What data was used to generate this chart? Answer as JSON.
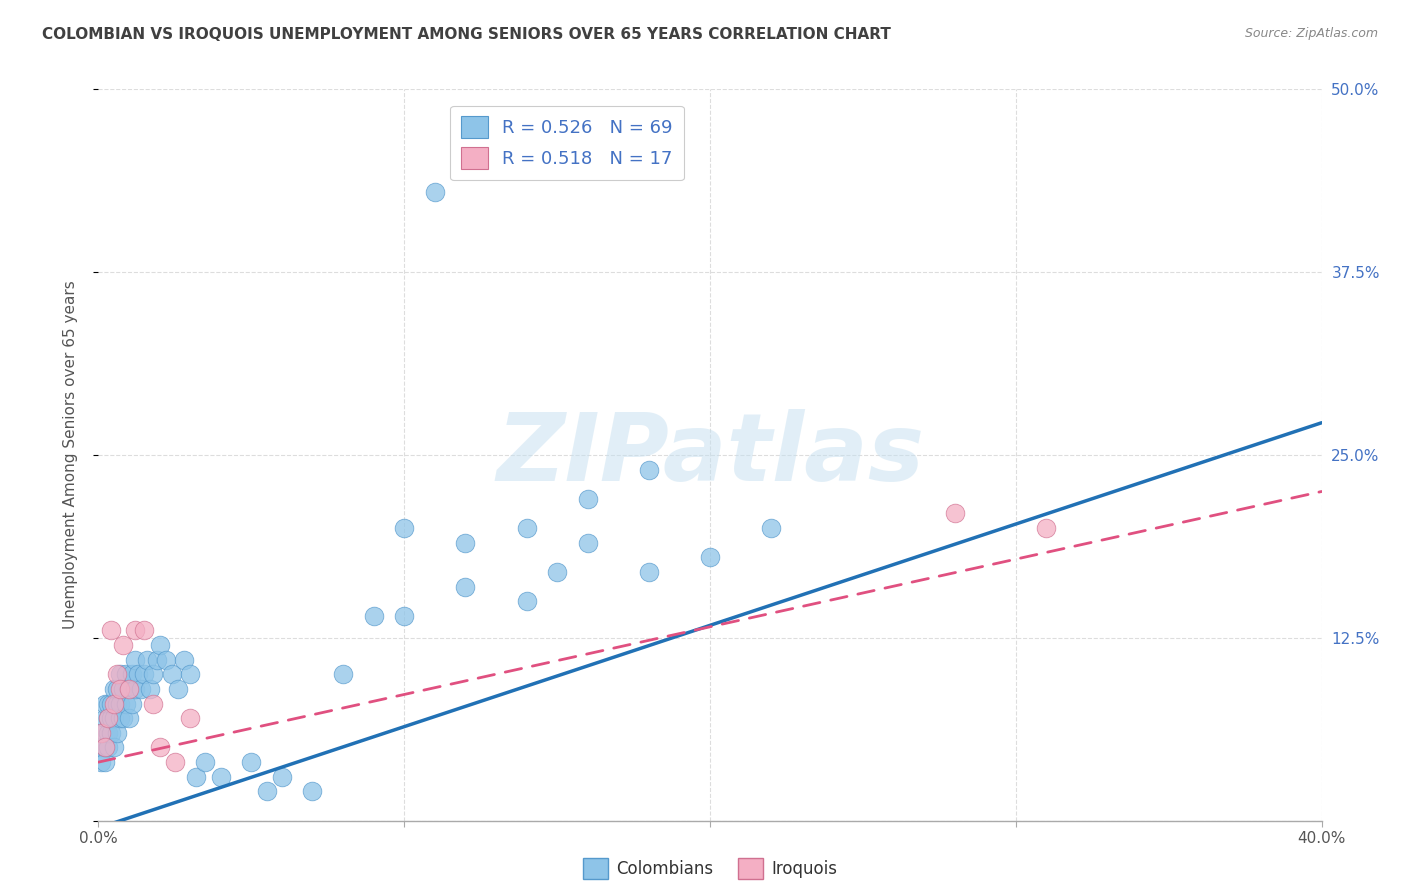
{
  "title": "COLOMBIAN VS IROQUOIS UNEMPLOYMENT AMONG SENIORS OVER 65 YEARS CORRELATION CHART",
  "source": "Source: ZipAtlas.com",
  "ylabel": "Unemployment Among Seniors over 65 years",
  "xlim": [
    0.0,
    0.4
  ],
  "ylim": [
    0.0,
    0.5
  ],
  "xticks": [
    0.0,
    0.1,
    0.2,
    0.3,
    0.4
  ],
  "yticks": [
    0.0,
    0.125,
    0.25,
    0.375,
    0.5
  ],
  "right_ytick_labels": [
    "",
    "12.5%",
    "25.0%",
    "37.5%",
    "50.0%"
  ],
  "xtick_labels": [
    "0.0%",
    "",
    "",
    "",
    "40.0%"
  ],
  "color_blue": "#8ec4e8",
  "color_pink": "#f4afc4",
  "color_blue_line": "#2171b5",
  "color_pink_line": "#e05080",
  "color_title": "#404040",
  "color_source": "#888888",
  "watermark": "ZIPatlas",
  "blue_line_x": [
    0.0,
    0.4
  ],
  "blue_line_y": [
    -0.005,
    0.272
  ],
  "pink_line_x": [
    0.0,
    0.4
  ],
  "pink_line_y": [
    0.04,
    0.225
  ],
  "grid_color": "#dddddd",
  "blue_x": [
    0.001,
    0.001,
    0.001,
    0.002,
    0.002,
    0.002,
    0.002,
    0.003,
    0.003,
    0.003,
    0.003,
    0.004,
    0.004,
    0.004,
    0.005,
    0.005,
    0.005,
    0.006,
    0.006,
    0.006,
    0.007,
    0.007,
    0.007,
    0.008,
    0.008,
    0.009,
    0.009,
    0.01,
    0.01,
    0.011,
    0.011,
    0.012,
    0.012,
    0.013,
    0.014,
    0.015,
    0.016,
    0.017,
    0.018,
    0.019,
    0.02,
    0.022,
    0.024,
    0.026,
    0.028,
    0.03,
    0.032,
    0.035,
    0.04,
    0.05,
    0.055,
    0.06,
    0.07,
    0.08,
    0.09,
    0.1,
    0.11,
    0.12,
    0.14,
    0.15,
    0.16,
    0.18,
    0.2,
    0.22,
    0.1,
    0.12,
    0.14,
    0.16,
    0.18
  ],
  "blue_y": [
    0.04,
    0.05,
    0.06,
    0.04,
    0.05,
    0.07,
    0.08,
    0.05,
    0.06,
    0.07,
    0.08,
    0.06,
    0.07,
    0.08,
    0.05,
    0.07,
    0.09,
    0.06,
    0.08,
    0.09,
    0.07,
    0.08,
    0.1,
    0.07,
    0.09,
    0.08,
    0.1,
    0.07,
    0.09,
    0.08,
    0.1,
    0.09,
    0.11,
    0.1,
    0.09,
    0.1,
    0.11,
    0.09,
    0.1,
    0.11,
    0.12,
    0.11,
    0.1,
    0.09,
    0.11,
    0.1,
    0.03,
    0.04,
    0.03,
    0.04,
    0.02,
    0.03,
    0.02,
    0.1,
    0.14,
    0.14,
    0.43,
    0.16,
    0.15,
    0.17,
    0.19,
    0.17,
    0.18,
    0.2,
    0.2,
    0.19,
    0.2,
    0.22,
    0.24
  ],
  "pink_x": [
    0.001,
    0.002,
    0.003,
    0.004,
    0.005,
    0.006,
    0.007,
    0.008,
    0.01,
    0.012,
    0.015,
    0.018,
    0.02,
    0.025,
    0.03,
    0.28,
    0.31
  ],
  "pink_y": [
    0.06,
    0.05,
    0.07,
    0.13,
    0.08,
    0.1,
    0.09,
    0.12,
    0.09,
    0.13,
    0.13,
    0.08,
    0.05,
    0.04,
    0.07,
    0.21,
    0.2
  ]
}
